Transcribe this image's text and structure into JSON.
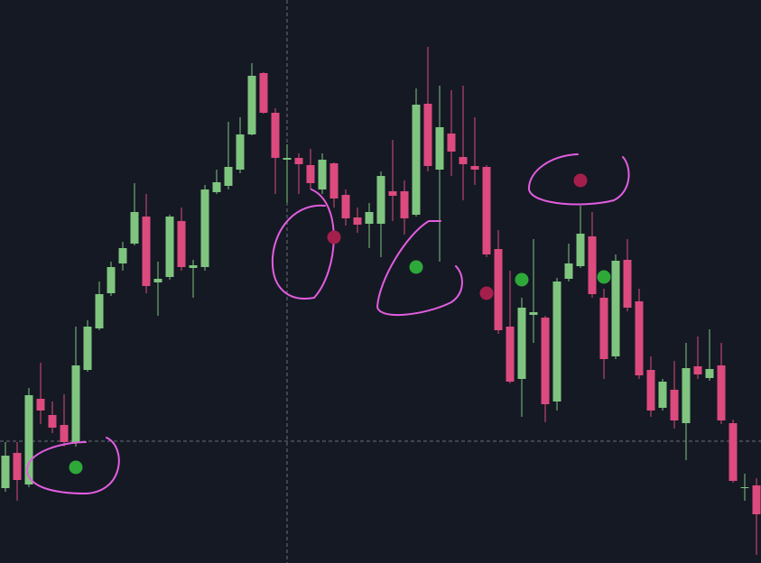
{
  "chart_data": {
    "type": "candlestick",
    "open": [
      83,
      122,
      87,
      182,
      164,
      153,
      134,
      214,
      260,
      299,
      332,
      354,
      384,
      311,
      317,
      379,
      327,
      328,
      411,
      418,
      436,
      475,
      543,
      499,
      447,
      449,
      441,
      414,
      443,
      408,
      383,
      376,
      376,
      412,
      412,
      386,
      509,
      436,
      476,
      450,
      440,
      439,
      348,
      262,
      204,
      275,
      272,
      179,
      315,
      329,
      362,
      294,
      229,
      336,
      290,
      214,
      172,
      192,
      155,
      218,
      205,
      219,
      155,
      83,
      86
    ],
    "high": [
      134,
      134,
      194,
      222,
      179,
      187,
      262,
      269,
      312,
      334,
      356,
      421,
      409,
      334,
      386,
      394,
      336,
      419,
      436,
      489,
      494,
      554,
      544,
      504,
      464,
      454,
      459,
      454,
      444,
      414,
      394,
      399,
      434,
      469,
      424,
      526,
      572,
      529,
      524,
      529,
      494,
      441,
      369,
      324,
      294,
      359,
      274,
      316,
      354,
      396,
      389,
      304,
      342,
      359,
      304,
      229,
      204,
      224,
      244,
      251,
      259,
      244,
      159,
      99,
      94
    ],
    "low": [
      79,
      69,
      84,
      154,
      144,
      129,
      129,
      212,
      258,
      296,
      324,
      352,
      299,
      274,
      314,
      324,
      294,
      324,
      409,
      414,
      432,
      474,
      498,
      409,
      399,
      409,
      414,
      409,
      394,
      374,
      366,
      349,
      339,
      379,
      364,
      384,
      434,
      334,
      429,
      402,
      419,
      339,
      254,
      199,
      162,
      244,
      156,
      169,
      312,
      327,
      294,
      204,
      226,
      279,
      204,
      162,
      169,
      149,
      114,
      204,
      202,
      154,
      89,
      69,
      9
    ],
    "close": [
      119,
      92,
      186,
      169,
      150,
      134,
      219,
      262,
      298,
      328,
      349,
      389,
      307,
      315,
      384,
      328,
      330,
      414,
      422,
      439,
      475,
      540,
      499,
      449,
      449,
      442,
      421,
      447,
      404,
      382,
      375,
      389,
      429,
      407,
      382,
      508,
      440,
      483,
      456,
      442,
      436,
      342,
      258,
      201,
      283,
      278,
      176,
      312,
      332,
      365,
      298,
      226,
      335,
      283,
      208,
      169,
      201,
      158,
      216,
      209,
      215,
      158,
      91,
      84,
      54
    ],
    "up_color": "#7fc57f",
    "down_color": "#dc4a7e",
    "signals": [
      {
        "index": 6,
        "value": 106,
        "color": "#2fa83a"
      },
      {
        "index": 28,
        "value": 361,
        "color": "#a51f4c"
      },
      {
        "index": 35,
        "value": 328,
        "color": "#2fa83a"
      },
      {
        "index": 41,
        "value": 299,
        "color": "#a51f4c"
      },
      {
        "index": 44,
        "value": 314,
        "color": "#2fa83a"
      },
      {
        "index": 49,
        "value": 424,
        "color": "#a51f4c"
      },
      {
        "index": 51,
        "value": 317,
        "color": "#2fa83a"
      }
    ],
    "ylim": [
      0,
      624
    ]
  }
}
